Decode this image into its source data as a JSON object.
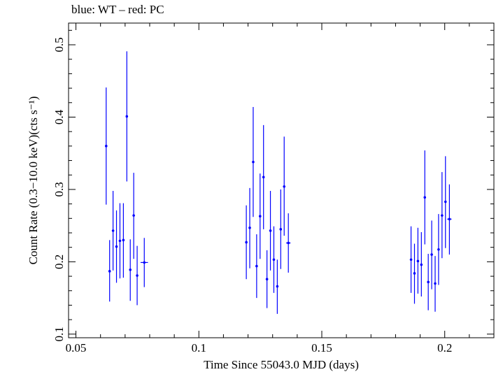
{
  "chart_data": {
    "type": "scatter",
    "title": "blue: WT – red: PC",
    "xlabel": "Time Since 55043.0 MJD (days)",
    "ylabel": "Count Rate (0.3−10.0 keV)(cts s⁻¹)",
    "xlim": [
      0.047,
      0.22
    ],
    "ylim": [
      0.095,
      0.53
    ],
    "xticks": [
      {
        "value": 0.05,
        "label": "0.05"
      },
      {
        "value": 0.1,
        "label": "0.1"
      },
      {
        "value": 0.15,
        "label": "0.15"
      },
      {
        "value": 0.2,
        "label": "0.2"
      }
    ],
    "yticks": [
      {
        "value": 0.1,
        "label": "0.1"
      },
      {
        "value": 0.2,
        "label": "0.2"
      },
      {
        "value": 0.3,
        "label": "0.3"
      },
      {
        "value": 0.4,
        "label": "0.4"
      },
      {
        "value": 0.5,
        "label": "0.5"
      }
    ],
    "grid": false,
    "series": [
      {
        "name": "WT",
        "color": "#0000ff",
        "points": [
          {
            "x": 0.0623,
            "y": 0.36,
            "lo": 0.279,
            "hi": 0.441,
            "xerr": 0.0004
          },
          {
            "x": 0.0637,
            "y": 0.187,
            "lo": 0.145,
            "hi": 0.23,
            "xerr": 0.0004
          },
          {
            "x": 0.0651,
            "y": 0.243,
            "lo": 0.188,
            "hi": 0.298,
            "xerr": 0.0004
          },
          {
            "x": 0.0665,
            "y": 0.221,
            "lo": 0.171,
            "hi": 0.271,
            "xerr": 0.0004
          },
          {
            "x": 0.0679,
            "y": 0.229,
            "lo": 0.177,
            "hi": 0.281,
            "xerr": 0.0004
          },
          {
            "x": 0.0693,
            "y": 0.23,
            "lo": 0.178,
            "hi": 0.281,
            "xerr": 0.0004
          },
          {
            "x": 0.0707,
            "y": 0.401,
            "lo": 0.311,
            "hi": 0.491,
            "xerr": 0.0004
          },
          {
            "x": 0.0721,
            "y": 0.189,
            "lo": 0.146,
            "hi": 0.231,
            "xerr": 0.0004
          },
          {
            "x": 0.0735,
            "y": 0.264,
            "lo": 0.204,
            "hi": 0.323,
            "xerr": 0.0004
          },
          {
            "x": 0.0749,
            "y": 0.181,
            "lo": 0.14,
            "hi": 0.222,
            "xerr": 0.0004
          },
          {
            "x": 0.0778,
            "y": 0.199,
            "lo": 0.165,
            "hi": 0.233,
            "xerr": 0.0015
          },
          {
            "x": 0.1193,
            "y": 0.227,
            "lo": 0.176,
            "hi": 0.278,
            "xerr": 0.0004
          },
          {
            "x": 0.1207,
            "y": 0.247,
            "lo": 0.191,
            "hi": 0.302,
            "xerr": 0.0004
          },
          {
            "x": 0.1221,
            "y": 0.338,
            "lo": 0.262,
            "hi": 0.414,
            "xerr": 0.0004
          },
          {
            "x": 0.1235,
            "y": 0.194,
            "lo": 0.15,
            "hi": 0.238,
            "xerr": 0.0004
          },
          {
            "x": 0.1249,
            "y": 0.263,
            "lo": 0.204,
            "hi": 0.322,
            "xerr": 0.0004
          },
          {
            "x": 0.1263,
            "y": 0.317,
            "lo": 0.245,
            "hi": 0.389,
            "xerr": 0.0004
          },
          {
            "x": 0.1277,
            "y": 0.176,
            "lo": 0.136,
            "hi": 0.216,
            "xerr": 0.0004
          },
          {
            "x": 0.1291,
            "y": 0.243,
            "lo": 0.188,
            "hi": 0.298,
            "xerr": 0.0004
          },
          {
            "x": 0.1305,
            "y": 0.203,
            "lo": 0.157,
            "hi": 0.249,
            "xerr": 0.0004
          },
          {
            "x": 0.1319,
            "y": 0.166,
            "lo": 0.128,
            "hi": 0.203,
            "xerr": 0.0004
          },
          {
            "x": 0.1333,
            "y": 0.245,
            "lo": 0.19,
            "hi": 0.3,
            "xerr": 0.0004
          },
          {
            "x": 0.1347,
            "y": 0.304,
            "lo": 0.236,
            "hi": 0.373,
            "xerr": 0.0004
          },
          {
            "x": 0.1364,
            "y": 0.226,
            "lo": 0.185,
            "hi": 0.267,
            "xerr": 0.0009
          },
          {
            "x": 0.1863,
            "y": 0.203,
            "lo": 0.157,
            "hi": 0.249,
            "xerr": 0.0004
          },
          {
            "x": 0.1877,
            "y": 0.184,
            "lo": 0.142,
            "hi": 0.225,
            "xerr": 0.0004
          },
          {
            "x": 0.1891,
            "y": 0.201,
            "lo": 0.156,
            "hi": 0.247,
            "xerr": 0.0004
          },
          {
            "x": 0.1905,
            "y": 0.196,
            "lo": 0.152,
            "hi": 0.241,
            "xerr": 0.0004
          },
          {
            "x": 0.1919,
            "y": 0.289,
            "lo": 0.224,
            "hi": 0.354,
            "xerr": 0.0004
          },
          {
            "x": 0.1933,
            "y": 0.172,
            "lo": 0.133,
            "hi": 0.211,
            "xerr": 0.0004
          },
          {
            "x": 0.1947,
            "y": 0.21,
            "lo": 0.162,
            "hi": 0.257,
            "xerr": 0.0004
          },
          {
            "x": 0.1961,
            "y": 0.17,
            "lo": 0.131,
            "hi": 0.208,
            "xerr": 0.0004
          },
          {
            "x": 0.1975,
            "y": 0.217,
            "lo": 0.168,
            "hi": 0.266,
            "xerr": 0.0004
          },
          {
            "x": 0.1989,
            "y": 0.264,
            "lo": 0.205,
            "hi": 0.324,
            "xerr": 0.0004
          },
          {
            "x": 0.2003,
            "y": 0.283,
            "lo": 0.219,
            "hi": 0.346,
            "xerr": 0.0004
          },
          {
            "x": 0.2019,
            "y": 0.259,
            "lo": 0.21,
            "hi": 0.307,
            "xerr": 0.0009
          }
        ]
      }
    ]
  }
}
